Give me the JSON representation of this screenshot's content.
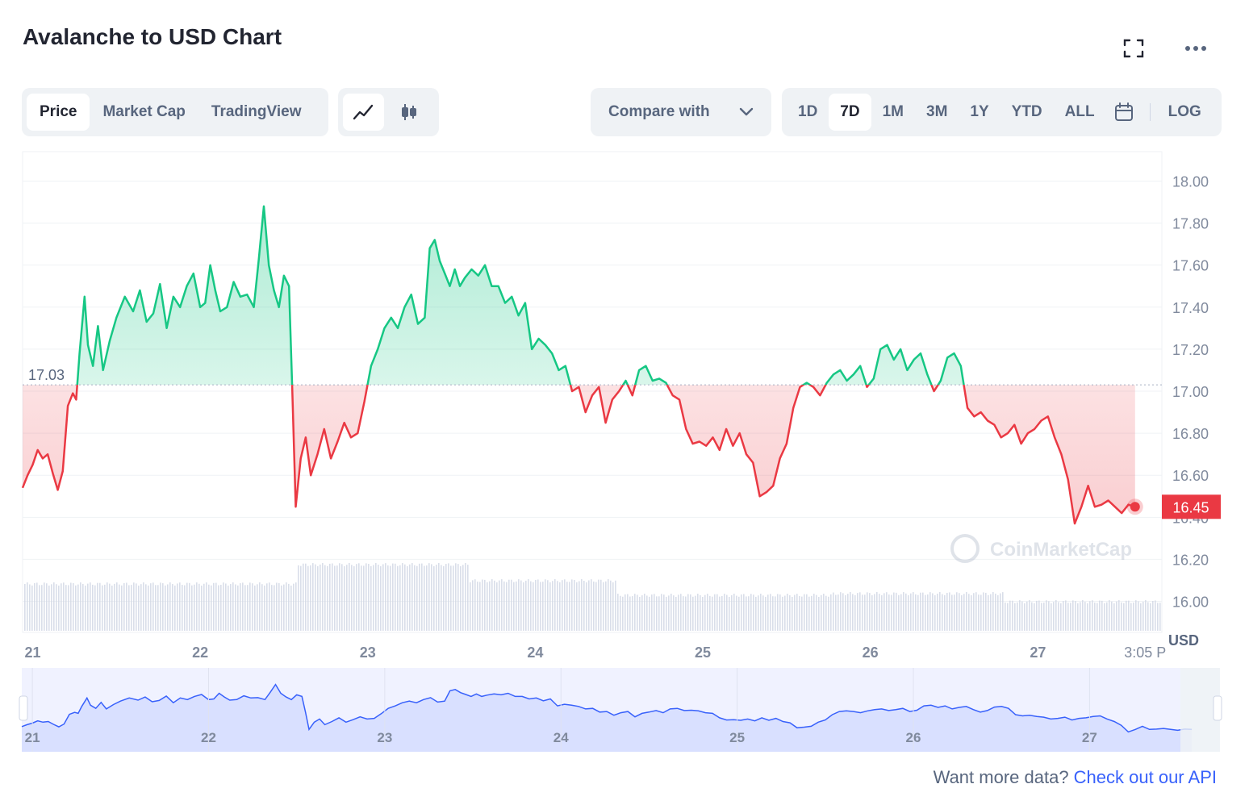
{
  "header": {
    "title": "Avalanche to USD Chart"
  },
  "tabs": [
    "Price",
    "Market Cap",
    "TradingView"
  ],
  "compare": {
    "label": "Compare with"
  },
  "ranges": [
    "1D",
    "7D",
    "1M",
    "3M",
    "1Y",
    "YTD",
    "ALL"
  ],
  "log_label": "LOG",
  "footer": {
    "text": "Want more data? ",
    "link": "Check out our API"
  },
  "colors": {
    "up": "#16c784",
    "down": "#ea3943",
    "navigator": "#3861fb",
    "accent": "#3861fb"
  },
  "chart_data": {
    "type": "line",
    "title": "Avalanche to USD Chart",
    "watermark": "CoinMarketCap",
    "currency_label": "USD",
    "reference_label": "17.03",
    "reference_value": 17.03,
    "last_price_label": "16.45",
    "last_price": 16.45,
    "ylim": [
      15.86,
      18.14
    ],
    "yticks": [
      "18.00",
      "17.80",
      "17.60",
      "17.40",
      "17.20",
      "17.00",
      "16.80",
      "16.60",
      "16.40",
      "16.20",
      "16.00"
    ],
    "xlim": [
      20.94,
      27.74
    ],
    "xticks": [
      "21",
      "22",
      "23",
      "24",
      "25",
      "26",
      "27",
      "3:05 P"
    ],
    "xtick_values": [
      21,
      22,
      23,
      24,
      25,
      26,
      27,
      27.64
    ],
    "series": [
      {
        "values": [
          [
            20.94,
            16.54
          ],
          [
            20.97,
            16.6
          ],
          [
            21.0,
            16.65
          ],
          [
            21.03,
            16.72
          ],
          [
            21.06,
            16.68
          ],
          [
            21.09,
            16.7
          ],
          [
            21.12,
            16.61
          ],
          [
            21.15,
            16.53
          ],
          [
            21.18,
            16.62
          ],
          [
            21.21,
            16.93
          ],
          [
            21.24,
            16.99
          ],
          [
            21.26,
            16.96
          ],
          [
            21.28,
            17.18
          ],
          [
            21.31,
            17.45
          ],
          [
            21.33,
            17.22
          ],
          [
            21.36,
            17.12
          ],
          [
            21.39,
            17.31
          ],
          [
            21.42,
            17.1
          ],
          [
            21.46,
            17.24
          ],
          [
            21.5,
            17.35
          ],
          [
            21.55,
            17.45
          ],
          [
            21.6,
            17.38
          ],
          [
            21.64,
            17.48
          ],
          [
            21.68,
            17.33
          ],
          [
            21.72,
            17.37
          ],
          [
            21.76,
            17.51
          ],
          [
            21.8,
            17.3
          ],
          [
            21.84,
            17.45
          ],
          [
            21.88,
            17.4
          ],
          [
            21.92,
            17.5
          ],
          [
            21.96,
            17.56
          ],
          [
            22.0,
            17.4
          ],
          [
            22.03,
            17.42
          ],
          [
            22.06,
            17.6
          ],
          [
            22.09,
            17.48
          ],
          [
            22.12,
            17.38
          ],
          [
            22.16,
            17.4
          ],
          [
            22.2,
            17.52
          ],
          [
            22.24,
            17.45
          ],
          [
            22.28,
            17.46
          ],
          [
            22.32,
            17.4
          ],
          [
            22.35,
            17.63
          ],
          [
            22.38,
            17.88
          ],
          [
            22.41,
            17.6
          ],
          [
            22.44,
            17.48
          ],
          [
            22.47,
            17.4
          ],
          [
            22.5,
            17.55
          ],
          [
            22.53,
            17.5
          ],
          [
            22.55,
            17.0
          ],
          [
            22.57,
            16.45
          ],
          [
            22.6,
            16.68
          ],
          [
            22.63,
            16.78
          ],
          [
            22.66,
            16.6
          ],
          [
            22.7,
            16.7
          ],
          [
            22.74,
            16.82
          ],
          [
            22.78,
            16.68
          ],
          [
            22.82,
            16.76
          ],
          [
            22.86,
            16.85
          ],
          [
            22.9,
            16.78
          ],
          [
            22.94,
            16.8
          ],
          [
            22.98,
            16.95
          ],
          [
            23.02,
            17.12
          ],
          [
            23.06,
            17.2
          ],
          [
            23.1,
            17.3
          ],
          [
            23.14,
            17.35
          ],
          [
            23.18,
            17.3
          ],
          [
            23.22,
            17.4
          ],
          [
            23.26,
            17.46
          ],
          [
            23.3,
            17.32
          ],
          [
            23.34,
            17.35
          ],
          [
            23.37,
            17.68
          ],
          [
            23.4,
            17.72
          ],
          [
            23.43,
            17.62
          ],
          [
            23.46,
            17.56
          ],
          [
            23.49,
            17.5
          ],
          [
            23.52,
            17.58
          ],
          [
            23.55,
            17.5
          ],
          [
            23.58,
            17.54
          ],
          [
            23.62,
            17.58
          ],
          [
            23.66,
            17.55
          ],
          [
            23.7,
            17.6
          ],
          [
            23.74,
            17.5
          ],
          [
            23.78,
            17.5
          ],
          [
            23.82,
            17.42
          ],
          [
            23.86,
            17.45
          ],
          [
            23.9,
            17.36
          ],
          [
            23.94,
            17.42
          ],
          [
            23.98,
            17.2
          ],
          [
            24.02,
            17.25
          ],
          [
            24.06,
            17.22
          ],
          [
            24.1,
            17.18
          ],
          [
            24.14,
            17.1
          ],
          [
            24.18,
            17.12
          ],
          [
            24.22,
            17.0
          ],
          [
            24.26,
            17.02
          ],
          [
            24.3,
            16.9
          ],
          [
            24.34,
            16.98
          ],
          [
            24.38,
            17.02
          ],
          [
            24.42,
            16.85
          ],
          [
            24.46,
            16.96
          ],
          [
            24.5,
            17.0
          ],
          [
            24.54,
            17.05
          ],
          [
            24.58,
            16.98
          ],
          [
            24.62,
            17.1
          ],
          [
            24.66,
            17.12
          ],
          [
            24.7,
            17.05
          ],
          [
            24.74,
            17.06
          ],
          [
            24.78,
            17.04
          ],
          [
            24.82,
            16.98
          ],
          [
            24.86,
            16.96
          ],
          [
            24.9,
            16.82
          ],
          [
            24.94,
            16.75
          ],
          [
            24.98,
            16.76
          ],
          [
            25.02,
            16.74
          ],
          [
            25.06,
            16.78
          ],
          [
            25.1,
            16.72
          ],
          [
            25.14,
            16.82
          ],
          [
            25.18,
            16.74
          ],
          [
            25.22,
            16.8
          ],
          [
            25.26,
            16.7
          ],
          [
            25.3,
            16.66
          ],
          [
            25.34,
            16.5
          ],
          [
            25.38,
            16.52
          ],
          [
            25.42,
            16.55
          ],
          [
            25.46,
            16.68
          ],
          [
            25.5,
            16.75
          ],
          [
            25.54,
            16.92
          ],
          [
            25.58,
            17.02
          ],
          [
            25.62,
            17.04
          ],
          [
            25.66,
            17.02
          ],
          [
            25.7,
            16.98
          ],
          [
            25.74,
            17.04
          ],
          [
            25.78,
            17.08
          ],
          [
            25.82,
            17.1
          ],
          [
            25.86,
            17.05
          ],
          [
            25.9,
            17.08
          ],
          [
            25.94,
            17.12
          ],
          [
            25.98,
            17.02
          ],
          [
            26.02,
            17.06
          ],
          [
            26.06,
            17.2
          ],
          [
            26.1,
            17.22
          ],
          [
            26.14,
            17.15
          ],
          [
            26.18,
            17.2
          ],
          [
            26.22,
            17.1
          ],
          [
            26.26,
            17.15
          ],
          [
            26.3,
            17.18
          ],
          [
            26.34,
            17.08
          ],
          [
            26.38,
            17.0
          ],
          [
            26.42,
            17.05
          ],
          [
            26.46,
            17.16
          ],
          [
            26.5,
            17.18
          ],
          [
            26.54,
            17.12
          ],
          [
            26.58,
            16.92
          ],
          [
            26.62,
            16.88
          ],
          [
            26.66,
            16.9
          ],
          [
            26.7,
            16.86
          ],
          [
            26.74,
            16.84
          ],
          [
            26.78,
            16.78
          ],
          [
            26.82,
            16.8
          ],
          [
            26.86,
            16.84
          ],
          [
            26.9,
            16.75
          ],
          [
            26.94,
            16.8
          ],
          [
            26.98,
            16.82
          ],
          [
            27.02,
            16.86
          ],
          [
            27.06,
            16.88
          ],
          [
            27.1,
            16.78
          ],
          [
            27.14,
            16.7
          ],
          [
            27.18,
            16.58
          ],
          [
            27.22,
            16.37
          ],
          [
            27.26,
            16.45
          ],
          [
            27.3,
            16.55
          ],
          [
            27.34,
            16.45
          ],
          [
            27.38,
            16.46
          ],
          [
            27.42,
            16.48
          ],
          [
            27.46,
            16.45
          ],
          [
            27.5,
            16.42
          ],
          [
            27.54,
            16.46
          ],
          [
            27.58,
            16.45
          ]
        ]
      }
    ],
    "navigator": {
      "xticks": [
        "21",
        "22",
        "23",
        "24",
        "25",
        "26",
        "27"
      ]
    }
  }
}
